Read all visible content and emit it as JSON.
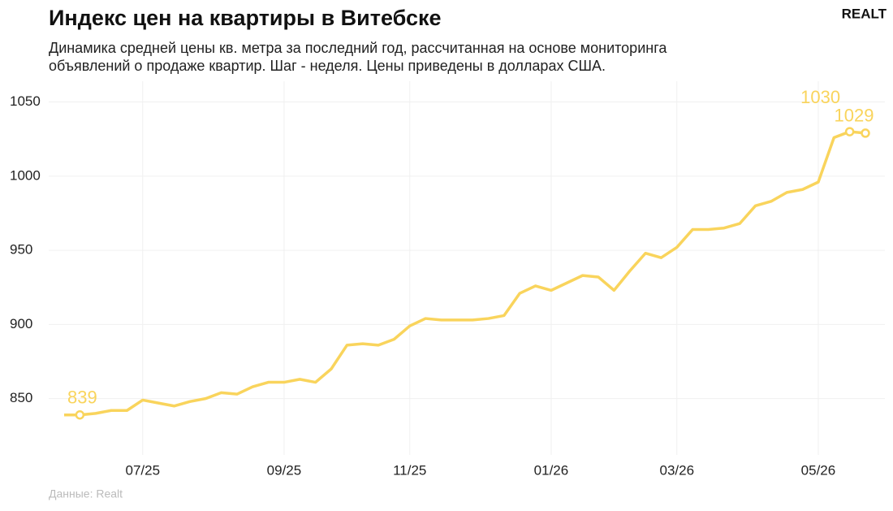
{
  "chart_data": {
    "type": "line",
    "title": "Индекс цен на квартиры в Витебске",
    "subtitle": [
      "Динамика средней цены кв. метра за последний год, рассчитанная на основе мониторинга",
      "объявлений о продаже квартир. Шаг - неделя. Цены приведены в долларах США."
    ],
    "source": "Данные: Realt",
    "logo": "REALT",
    "categories": [
      null,
      null,
      null,
      null,
      null,
      "07/25",
      null,
      null,
      null,
      null,
      null,
      null,
      null,
      null,
      "09/25",
      null,
      null,
      null,
      null,
      null,
      null,
      null,
      "11/25",
      null,
      null,
      null,
      null,
      null,
      null,
      null,
      null,
      "01/26",
      null,
      null,
      null,
      null,
      null,
      null,
      null,
      "03/26",
      null,
      null,
      null,
      null,
      null,
      null,
      null,
      null,
      "05/26",
      null,
      null,
      null
    ],
    "series": [
      {
        "color": "#f9d45c",
        "values": [
          839,
          839,
          840,
          842,
          842,
          849,
          847,
          845,
          848,
          850,
          854,
          853,
          858,
          861,
          861,
          863,
          861,
          870,
          886,
          887,
          886,
          890,
          899,
          904,
          903,
          903,
          903,
          904,
          906,
          921,
          926,
          923,
          928,
          933,
          932,
          923,
          936,
          948,
          945,
          952,
          964,
          964,
          965,
          968,
          980,
          983,
          989,
          991,
          996,
          1026,
          1030,
          1029
        ],
        "highlight": [
          1,
          50,
          51
        ]
      }
    ],
    "ylim": [
      812,
      1064
    ],
    "yticks": [
      850,
      900,
      950,
      1000,
      1050
    ],
    "grid": true
  }
}
